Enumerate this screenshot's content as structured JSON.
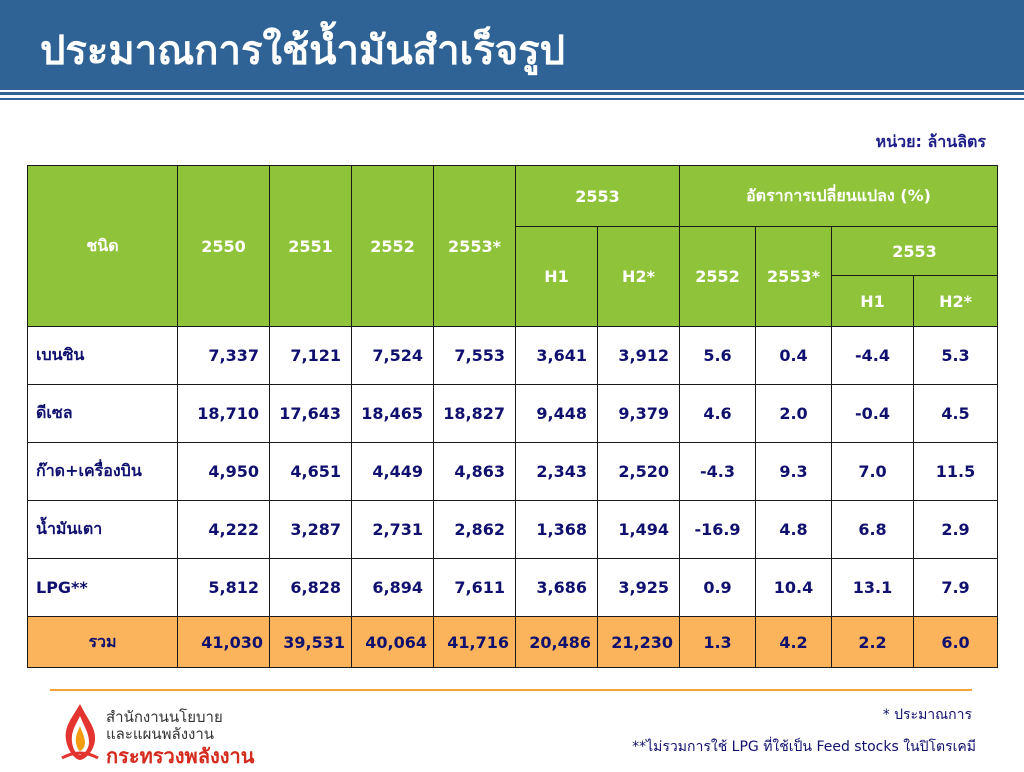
{
  "header": {
    "title": "ประมาณการใช้น้ำมันสำเร็จรูป",
    "color": "#2f6395"
  },
  "unit_label": "หน่วย: ล้านลิตร",
  "table": {
    "header": {
      "type_label": "ชนิด",
      "years": [
        "2550",
        "2551",
        "2552",
        "2553*"
      ],
      "group_2553": "2553",
      "h1": "H1",
      "h2": "H2*",
      "change_group": "อัตราการเปลี่ยนแปลง (%)",
      "change_2552": "2552",
      "change_2553": "2553*",
      "change_sub_2553": "2553",
      "change_h1": "H1",
      "change_h2": "H2*"
    },
    "header_color": "#8fc33a",
    "rows": [
      {
        "name": "เบนซิน",
        "y2550": "7,337",
        "y2551": "7,121",
        "y2552": "7,524",
        "y2553": "7,553",
        "h1": "3,641",
        "h2": "3,912",
        "c2552": "5.6",
        "c2553": "0.4",
        "ch1": "-4.4",
        "ch2": "5.3"
      },
      {
        "name": "ดีเซล",
        "y2550": "18,710",
        "y2551": "17,643",
        "y2552": "18,465",
        "y2553": "18,827",
        "h1": "9,448",
        "h2": "9,379",
        "c2552": "4.6",
        "c2553": "2.0",
        "ch1": "-0.4",
        "ch2": "4.5"
      },
      {
        "name": "ก๊าด+เครื่องบิน",
        "y2550": "4,950",
        "y2551": "4,651",
        "y2552": "4,449",
        "y2553": "4,863",
        "h1": "2,343",
        "h2": "2,520",
        "c2552": "-4.3",
        "c2553": "9.3",
        "ch1": "7.0",
        "ch2": "11.5"
      },
      {
        "name": "น้ำมันเตา",
        "y2550": "4,222",
        "y2551": "3,287",
        "y2552": "2,731",
        "y2553": "2,862",
        "h1": "1,368",
        "h2": "1,494",
        "c2552": "-16.9",
        "c2553": "4.8",
        "ch1": "6.8",
        "ch2": "2.9"
      },
      {
        "name": "LPG**",
        "y2550": "5,812",
        "y2551": "6,828",
        "y2552": "6,894",
        "y2553": "7,611",
        "h1": "3,686",
        "h2": "3,925",
        "c2552": "0.9",
        "c2553": "10.4",
        "ch1": "13.1",
        "ch2": "7.9"
      }
    ],
    "total": {
      "name": "รวม",
      "y2550": "41,030",
      "y2551": "39,531",
      "y2552": "40,064",
      "y2553": "41,716",
      "h1": "20,486",
      "h2": "21,230",
      "c2552": "1.3",
      "c2553": "4.2",
      "ch1": "2.2",
      "ch2": "6.0"
    },
    "total_color": "#fbb45b"
  },
  "footer": {
    "org_line1": "สำนักงานนโยบาย",
    "org_line2": "และแผนพลังงาน",
    "org_line3": "กระทรวงพลังงาน",
    "note1": "* ประมาณการ",
    "note2": "**ไม่รวมการใช้ LPG ที่ใช้เป็น Feed stocks ในปิโตรเคมี",
    "logo_icon": "flame-logo-icon"
  }
}
